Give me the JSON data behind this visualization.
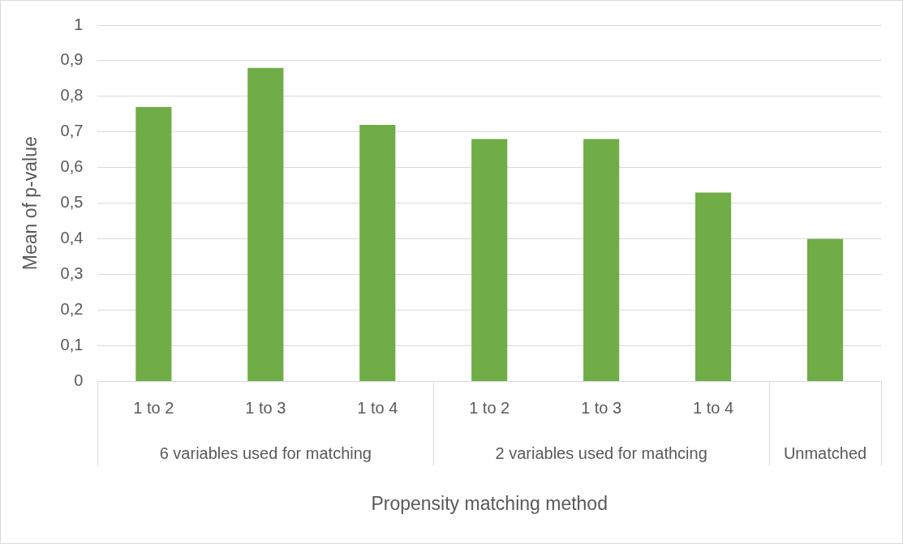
{
  "chart_data": {
    "type": "bar",
    "categories": [
      "1 to 2",
      "1 to 3",
      "1 to 4",
      "1 to 2",
      "1 to 3",
      "1 to 4",
      null
    ],
    "values": [
      0.77,
      0.88,
      0.72,
      0.68,
      0.68,
      0.53,
      0.4
    ],
    "color": "#70ad47",
    "xlabel": "Propensity matching method",
    "ylabel": "Mean of p-value",
    "annotations": [
      "6 variables used for matching",
      "2 variables used for mathcing",
      "Unmatched"
    ],
    "ylim": [
      0,
      1
    ],
    "yticks": [
      0,
      {
        "value": 0.1,
        "label": "0,1"
      },
      {
        "value": 0.2,
        "label": "0,2"
      },
      {
        "value": 0.3,
        "label": "0,3"
      },
      {
        "value": 0.4,
        "label": "0,4"
      },
      {
        "value": 0.5,
        "label": "0,5"
      },
      {
        "value": 0.6,
        "label": "0,6"
      },
      {
        "value": 0.7,
        "label": "0,7"
      },
      {
        "value": 0.8,
        "label": "0,8"
      },
      {
        "value": 0.9,
        "label": "0,9"
      },
      1
    ],
    "grid": "y",
    "legend": false
  }
}
